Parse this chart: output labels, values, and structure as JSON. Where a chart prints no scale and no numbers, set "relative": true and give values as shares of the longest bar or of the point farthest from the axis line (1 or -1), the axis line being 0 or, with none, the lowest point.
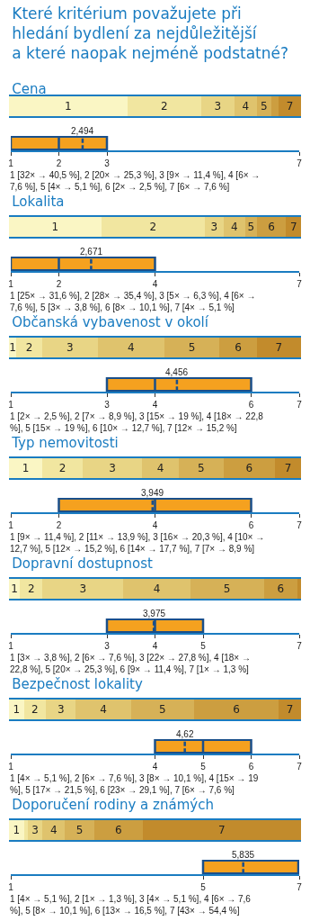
{
  "chart_data": [
    {
      "type": "bar",
      "title": "Které kritérium považujete při hledání bydlení za nejdůležitější a které naopak nejméně podstatné?",
      "subtitle": "Cena",
      "orientation": "horizontal",
      "stacked": true,
      "relative": true,
      "categories": [
        null
      ],
      "series": [
        {
          "name": "1",
          "color": "#faf6c4",
          "values": [
            0.405
          ]
        },
        {
          "name": "2",
          "color": "#f1e6a0",
          "values": [
            0.253
          ]
        },
        {
          "name": "3",
          "color": "#e8d585",
          "values": [
            0.114
          ]
        },
        {
          "name": "4",
          "color": "#dfc36d",
          "values": [
            0.076
          ]
        },
        {
          "name": "5",
          "color": "#d6b157",
          "values": [
            0.051
          ]
        },
        {
          "color": "#cc9e40",
          "values": [
            0.025
          ]
        },
        {
          "name": "7",
          "color": "#c28b2c",
          "values": [
            0.076
          ]
        }
      ]
    },
    {
      "type": "box",
      "orientation": "horizontal",
      "categories": [
        null
      ],
      "color": "#f5a11f",
      "xlim": [
        1,
        7
      ],
      "xticks": [
        1,
        2,
        3,
        7
      ],
      "tick_labels": "x",
      "boxes": [
        {
          "low": 1,
          "q1": 1,
          "median": 2,
          "q3": 3,
          "high": 3,
          "mean": 2.494
        }
      ],
      "annotations": [
        "2,494",
        "1 [32× → 40,5 %], 2 [20× → 25,3 %], 3 [9× → 11,4 %], 4 [6× → 7,6 %], 5 [4× → 5,1 %], 6 [2× → 2,5 %], 7 [6× → 7,6 %]"
      ]
    },
    {
      "type": "bar",
      "title": "Lokalita",
      "orientation": "horizontal",
      "stacked": true,
      "relative": true,
      "categories": [
        null
      ],
      "series": [
        {
          "name": "1",
          "color": "#faf6c4",
          "values": [
            0.316
          ]
        },
        {
          "name": "2",
          "color": "#f1e6a0",
          "values": [
            0.355
          ]
        },
        {
          "name": "3",
          "color": "#e8d585",
          "values": [
            0.063
          ]
        },
        {
          "name": "4",
          "color": "#dfc36d",
          "values": [
            0.076
          ]
        },
        {
          "name": "5",
          "color": "#d6b157",
          "values": [
            0.038
          ]
        },
        {
          "name": "6",
          "color": "#cc9e40",
          "values": [
            0.101
          ]
        },
        {
          "name": "7",
          "color": "#c28b2c",
          "values": [
            0.051
          ]
        }
      ]
    },
    {
      "type": "box",
      "orientation": "horizontal",
      "categories": [
        null
      ],
      "color": "#f5a11f",
      "xlim": [
        1,
        7
      ],
      "xticks": [
        1,
        2,
        4,
        7
      ],
      "tick_labels": "x",
      "boxes": [
        {
          "low": 1,
          "q1": 1,
          "median": 2,
          "q3": 4,
          "high": 4,
          "mean": 2.671
        }
      ],
      "annotations": [
        "2,671",
        "1 [25× → 31,6 %], 2 [28× → 35,4 %], 3 [5× → 6,3 %], 4 [6× → 7,6 %], 5 [3× → 3,8 %], 6 [8× → 10,1 %], 7 [4× → 5,1 %]"
      ]
    },
    {
      "type": "bar",
      "title": "Občanská vybavenost v okolí",
      "orientation": "horizontal",
      "stacked": true,
      "relative": true,
      "categories": [
        null
      ],
      "series": [
        {
          "name": "1",
          "color": "#faf6c4",
          "values": [
            0.025
          ]
        },
        {
          "name": "2",
          "color": "#f1e6a0",
          "values": [
            0.089
          ]
        },
        {
          "name": "3",
          "color": "#e8d585",
          "values": [
            0.19
          ]
        },
        {
          "name": "4",
          "color": "#dfc36d",
          "values": [
            0.227
          ]
        },
        {
          "name": "5",
          "color": "#d6b157",
          "values": [
            0.19
          ]
        },
        {
          "name": "6",
          "color": "#cc9e40",
          "values": [
            0.127
          ]
        },
        {
          "name": "7",
          "color": "#c28b2c",
          "values": [
            0.152
          ]
        }
      ]
    },
    {
      "type": "box",
      "orientation": "horizontal",
      "categories": [
        null
      ],
      "color": "#f5a11f",
      "xlim": [
        1,
        7
      ],
      "xticks": [
        1,
        3,
        4,
        6,
        7
      ],
      "tick_labels": "x",
      "boxes": [
        {
          "low": 3,
          "q1": 3,
          "median": 4,
          "q3": 6,
          "high": 6,
          "mean": 4.456
        }
      ],
      "annotations": [
        "4,456",
        "1 [2× → 2,5 %], 2 [7× → 8,9 %], 3 [15× → 19 %], 4 [18× → 22,8 %], 5 [15× → 19 %], 6 [10× → 12,7 %], 7 [12× → 15,2 %]"
      ]
    },
    {
      "type": "bar",
      "title": "Typ nemovitosti",
      "orientation": "horizontal",
      "stacked": true,
      "relative": true,
      "categories": [
        null
      ],
      "series": [
        {
          "name": "1",
          "color": "#faf6c4",
          "values": [
            0.114
          ]
        },
        {
          "name": "2",
          "color": "#f1e6a0",
          "values": [
            0.139
          ]
        },
        {
          "name": "3",
          "color": "#e8d585",
          "values": [
            0.202
          ]
        },
        {
          "name": "4",
          "color": "#dfc36d",
          "values": [
            0.127
          ]
        },
        {
          "name": "5",
          "color": "#d6b157",
          "values": [
            0.152
          ]
        },
        {
          "name": "6",
          "color": "#cc9e40",
          "values": [
            0.177
          ]
        },
        {
          "name": "7",
          "color": "#c28b2c",
          "values": [
            0.089
          ]
        }
      ]
    },
    {
      "type": "box",
      "orientation": "horizontal",
      "categories": [
        null
      ],
      "color": "#f5a11f",
      "xlim": [
        1,
        7
      ],
      "xticks": [
        1,
        2,
        4,
        6,
        7
      ],
      "tick_labels": "x",
      "boxes": [
        {
          "low": 2,
          "q1": 2,
          "median": 4,
          "q3": 6,
          "high": 6,
          "mean": 3.949
        }
      ],
      "annotations": [
        "3,949",
        "1 [9× → 11,4 %], 2 [11× → 13,9 %], 3 [16× → 20,3 %], 4 [10× → 12,7 %], 5 [12× → 15,2 %], 6 [14× → 17,7 %], 7 [7× → 8,9 %]"
      ]
    },
    {
      "type": "bar",
      "title": "Dopravní dostupnost",
      "orientation": "horizontal",
      "stacked": true,
      "relative": true,
      "categories": [
        null
      ],
      "series": [
        {
          "name": "1",
          "color": "#faf6c4",
          "values": [
            0.038
          ]
        },
        {
          "name": "2",
          "color": "#f1e6a0",
          "values": [
            0.076
          ]
        },
        {
          "name": "3",
          "color": "#e8d585",
          "values": [
            0.278
          ]
        },
        {
          "name": "4",
          "color": "#dfc36d",
          "values": [
            0.228
          ]
        },
        {
          "name": "5",
          "color": "#d6b157",
          "values": [
            0.253
          ]
        },
        {
          "name": "6",
          "color": "#cc9e40",
          "values": [
            0.114
          ]
        },
        {
          "color": "#c28b2c",
          "values": [
            0.013
          ]
        }
      ]
    },
    {
      "type": "box",
      "orientation": "horizontal",
      "categories": [
        null
      ],
      "color": "#f5a11f",
      "xlim": [
        1,
        7
      ],
      "xticks": [
        1,
        3,
        4,
        5,
        7
      ],
      "tick_labels": "x",
      "boxes": [
        {
          "low": 3,
          "q1": 3,
          "median": 4,
          "q3": 5,
          "high": 5,
          "mean": 3.975
        }
      ],
      "annotations": [
        "3,975",
        "1 [3× → 3,8 %], 2 [6× → 7,6 %], 3 [22× → 27,8 %], 4 [18× → 22,8 %], 5 [20× → 25,3 %], 6 [9× → 11,4 %], 7 [1× → 1,3 %]"
      ]
    },
    {
      "type": "bar",
      "title": "Bezpečnost lokality",
      "orientation": "horizontal",
      "stacked": true,
      "relative": true,
      "categories": [
        null
      ],
      "series": [
        {
          "name": "1",
          "color": "#faf6c4",
          "values": [
            0.051
          ]
        },
        {
          "name": "2",
          "color": "#f1e6a0",
          "values": [
            0.076
          ]
        },
        {
          "name": "3",
          "color": "#e8d585",
          "values": [
            0.101
          ]
        },
        {
          "name": "4",
          "color": "#dfc36d",
          "values": [
            0.19
          ]
        },
        {
          "name": "5",
          "color": "#d6b157",
          "values": [
            0.215
          ]
        },
        {
          "name": "6",
          "color": "#cc9e40",
          "values": [
            0.291
          ]
        },
        {
          "name": "7",
          "color": "#c28b2c",
          "values": [
            0.076
          ]
        }
      ]
    },
    {
      "type": "box",
      "orientation": "horizontal",
      "categories": [
        null
      ],
      "color": "#f5a11f",
      "xlim": [
        1,
        7
      ],
      "xticks": [
        1,
        4,
        5,
        6,
        7
      ],
      "tick_labels": "x",
      "boxes": [
        {
          "low": 4,
          "q1": 4,
          "median": 5,
          "q3": 6,
          "high": 6,
          "mean": 4.62
        }
      ],
      "annotations": [
        "4,62",
        "1 [4× → 5,1 %], 2 [6× → 7,6 %], 3 [8× → 10,1 %], 4 [15× → 19 %], 5 [17× → 21,5 %], 6 [23× → 29,1 %], 7 [6× → 7,6 %]"
      ]
    },
    {
      "type": "bar",
      "title": "Doporučení rodiny a známých",
      "orientation": "horizontal",
      "stacked": true,
      "relative": true,
      "categories": [
        null
      ],
      "series": [
        {
          "name": "1",
          "color": "#faf6c4",
          "values": [
            0.051
          ]
        },
        {
          "color": "#f1e6a0",
          "values": [
            0.013
          ]
        },
        {
          "name": "3",
          "color": "#e8d585",
          "values": [
            0.051
          ]
        },
        {
          "name": "4",
          "color": "#dfc36d",
          "values": [
            0.076
          ]
        },
        {
          "name": "5",
          "color": "#d6b157",
          "values": [
            0.101
          ]
        },
        {
          "name": "6",
          "color": "#cc9e40",
          "values": [
            0.165
          ]
        },
        {
          "name": "7",
          "color": "#c28b2c",
          "values": [
            0.543
          ]
        }
      ]
    },
    {
      "type": "box",
      "orientation": "horizontal",
      "categories": [
        null
      ],
      "color": "#f5a11f",
      "xlim": [
        1,
        7
      ],
      "xticks": [
        1,
        5,
        7
      ],
      "tick_labels": "x",
      "boxes": [
        {
          "low": 5,
          "q1": 5,
          "median": 7,
          "q3": 7,
          "high": 7,
          "mean": 5.835
        }
      ],
      "annotations": [
        "5,835",
        "1 [4× → 5,1 %], 2 [1× → 1,3 %], 3 [4× → 5,1 %], 4 [6× → 7,6 %], 5 [8× → 10,1 %], 6 [13× → 16,5 %], 7 [43× → 54,4 %]"
      ]
    }
  ]
}
